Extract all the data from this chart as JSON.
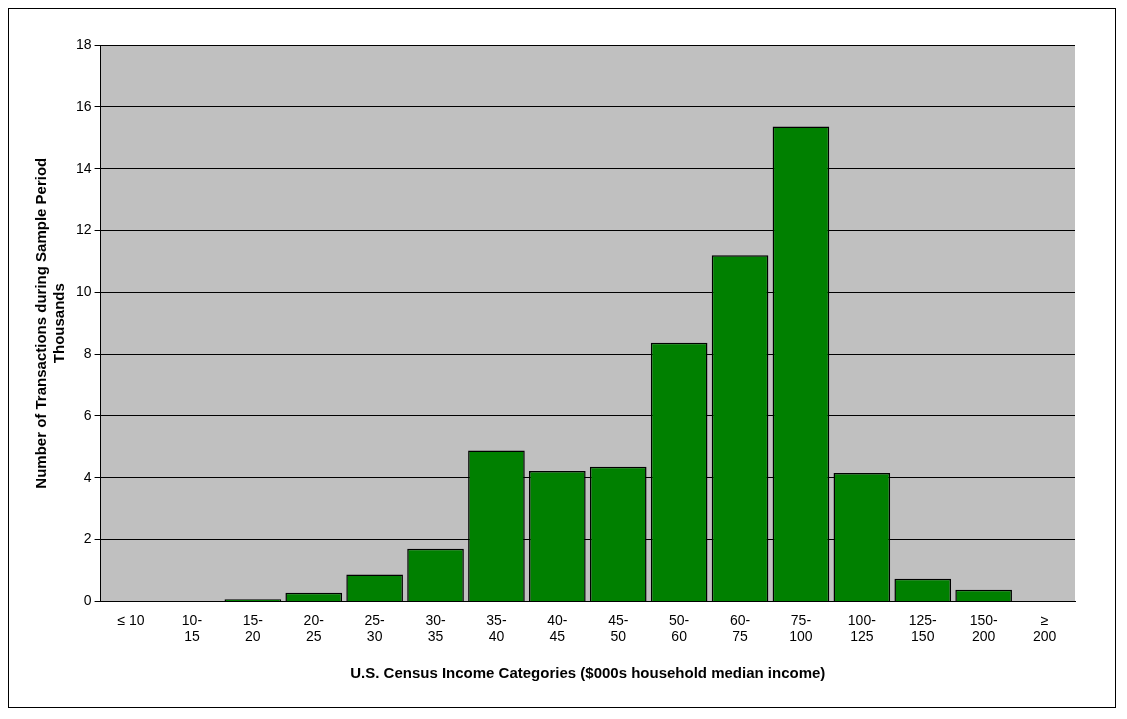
{
  "chart_data": {
    "type": "bar",
    "xlabel": "U.S. Census Income Categories ($000s household median income)",
    "ylabel": "Number of Transactions during Sample Period\nThousands",
    "categories": [
      "≤ 10",
      "10-\n15",
      "15-\n20",
      "20-\n25",
      "25-\n30",
      "30-\n35",
      "35-\n40",
      "40-\n45",
      "45-\n50",
      "50-\n60",
      "60-\n75",
      "75-\n100",
      "100-\n125",
      "125-\n150",
      "150-\n200",
      "≥\n200"
    ],
    "values": [
      0,
      0,
      0.07,
      0.28,
      0.87,
      1.7,
      4.88,
      4.22,
      4.36,
      8.37,
      11.2,
      15.36,
      4.15,
      0.73,
      0.38,
      0
    ],
    "color": "#008000",
    "ylim": [
      0,
      18
    ],
    "yticks": [
      0,
      2,
      4,
      6,
      8,
      10,
      12,
      14,
      16,
      18
    ],
    "grid": "y",
    "legend": false
  }
}
